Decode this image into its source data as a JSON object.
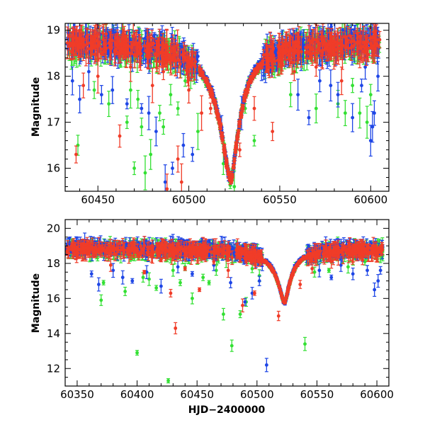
{
  "chart_data": [
    {
      "type": "scatter",
      "title": "",
      "xlabel": "",
      "ylabel": "Magnitude",
      "xlim": [
        60432,
        60610
      ],
      "ylim": [
        19.15,
        15.5
      ],
      "y_inverted": true,
      "grid": false,
      "x_ticks": [
        60450,
        60500,
        60550,
        60600
      ],
      "x_tick_labels": [
        "60450",
        "60500",
        "60550",
        "60600"
      ],
      "y_ticks": [
        16,
        17,
        18,
        19
      ],
      "y_tick_labels": [
        "16",
        "17",
        "18",
        "19"
      ],
      "peak": {
        "x": 60523,
        "y": 15.72
      },
      "series": [
        {
          "color": "#33e033",
          "baseline": 18.75,
          "outliers": [
            [
              60439,
              16.5
            ],
            [
              60448,
              17.7
            ],
            [
              60456,
              17.4
            ],
            [
              60466,
              17.0
            ],
            [
              60468,
              17.7
            ],
            [
              60470,
              16.0
            ],
            [
              60472,
              17.5
            ],
            [
              60474,
              16.9
            ],
            [
              60476,
              15.9
            ],
            [
              60479,
              16.3
            ],
            [
              60484,
              17.2
            ],
            [
              60486,
              16.9
            ],
            [
              60490,
              17.6
            ],
            [
              60494,
              17.3
            ],
            [
              60498,
              17.9
            ],
            [
              60505,
              16.8
            ],
            [
              60519,
              16.1
            ],
            [
              60525,
              15.6
            ],
            [
              60531,
              17.3
            ],
            [
              60536,
              16.6
            ],
            [
              60556,
              17.6
            ],
            [
              60570,
              17.3
            ],
            [
              60582,
              17.4
            ],
            [
              60586,
              17.2
            ],
            [
              60590,
              17.8
            ],
            [
              60594,
              17.2
            ],
            [
              60598,
              17.0
            ],
            [
              60600,
              17.6
            ]
          ]
        },
        {
          "color": "#1e46e6",
          "baseline": 18.8,
          "outliers": [
            [
              60436,
              17.9
            ],
            [
              60440,
              17.5
            ],
            [
              60445,
              18.1
            ],
            [
              60452,
              17.6
            ],
            [
              60458,
              17.7
            ],
            [
              60466,
              17.4
            ],
            [
              60474,
              17.3
            ],
            [
              60478,
              17.2
            ],
            [
              60482,
              16.8
            ],
            [
              60487,
              15.7
            ],
            [
              60491,
              16.0
            ],
            [
              60497,
              16.5
            ],
            [
              60502,
              16.3
            ],
            [
              60518,
              16.9
            ],
            [
              60529,
              17.2
            ],
            [
              60540,
              18.2
            ],
            [
              60560,
              17.6
            ],
            [
              60566,
              17.1
            ],
            [
              60572,
              17.9
            ],
            [
              60578,
              17.8
            ],
            [
              60582,
              17.6
            ],
            [
              60590,
              17.1
            ],
            [
              60595,
              17.8
            ],
            [
              60597,
              18.2
            ],
            [
              60600,
              16.6
            ],
            [
              60601,
              16.9
            ],
            [
              60602,
              17.2
            ],
            [
              60604,
              18.0
            ]
          ]
        },
        {
          "color": "#f03c28",
          "baseline": 18.75,
          "outliers": [
            [
              60438,
              16.3
            ],
            [
              60442,
              17.8
            ],
            [
              60450,
              18.0
            ],
            [
              60462,
              16.7
            ],
            [
              60468,
              18.2
            ],
            [
              60480,
              17.8
            ],
            [
              60486,
              18.1
            ],
            [
              60488,
              15.55
            ],
            [
              60494,
              16.2
            ],
            [
              60496,
              15.7
            ],
            [
              60500,
              17.7
            ],
            [
              60507,
              17.2
            ],
            [
              60512,
              17.3
            ],
            [
              60528,
              16.4
            ],
            [
              60536,
              17.3
            ],
            [
              60546,
              16.8
            ],
            [
              60558,
              18.1
            ],
            [
              60570,
              18.2
            ],
            [
              60584,
              17.9
            ],
            [
              60594,
              18.4
            ]
          ]
        }
      ]
    },
    {
      "type": "scatter",
      "title": "",
      "xlabel": "HJD−2400000",
      "ylabel": "Magnitude",
      "xlim": [
        60340,
        60610
      ],
      "ylim": [
        20.5,
        11.0
      ],
      "y_inverted": true,
      "grid": false,
      "x_ticks": [
        60350,
        60400,
        60450,
        60500,
        60550,
        60600
      ],
      "x_tick_labels": [
        "60350",
        "60400",
        "60450",
        "60500",
        "60550",
        "60600"
      ],
      "y_ticks": [
        12,
        14,
        16,
        18,
        20
      ],
      "y_tick_labels": [
        "12",
        "14",
        "16",
        "18",
        "20"
      ],
      "peak": {
        "x": 60523,
        "y": 15.75
      },
      "series": [
        {
          "color": "#33e033",
          "baseline": 18.8,
          "outliers": [
            [
              60370,
              15.9
            ],
            [
              60372,
              16.9
            ],
            [
              60390,
              16.4
            ],
            [
              60400,
              12.9
            ],
            [
              60405,
              17.2
            ],
            [
              60410,
              17.1
            ],
            [
              60416,
              16.6
            ],
            [
              60426,
              11.3
            ],
            [
              60430,
              17.6
            ],
            [
              60436,
              16.9
            ],
            [
              60440,
              17.8
            ],
            [
              60446,
              16.0
            ],
            [
              60455,
              17.2
            ],
            [
              60460,
              16.9
            ],
            [
              60466,
              17.6
            ],
            [
              60472,
              15.1
            ],
            [
              60479,
              13.3
            ],
            [
              60486,
              15.1
            ],
            [
              60491,
              15.8
            ],
            [
              60496,
              17.7
            ],
            [
              60502,
              17.3
            ],
            [
              60532,
              17.9
            ],
            [
              60540,
              13.4
            ],
            [
              60548,
              17.5
            ],
            [
              60560,
              17.6
            ],
            [
              60576,
              17.8
            ],
            [
              60590,
              18.1
            ]
          ]
        },
        {
          "color": "#1e46e6",
          "baseline": 18.9,
          "outliers": [
            [
              60362,
              17.4
            ],
            [
              60368,
              16.8
            ],
            [
              60380,
              17.6
            ],
            [
              60388,
              17.2
            ],
            [
              60396,
              17.0
            ],
            [
              60408,
              17.5
            ],
            [
              60420,
              16.7
            ],
            [
              60434,
              17.8
            ],
            [
              60446,
              17.4
            ],
            [
              60464,
              17.9
            ],
            [
              60478,
              16.9
            ],
            [
              60490,
              15.8
            ],
            [
              60496,
              16.3
            ],
            [
              60502,
              17.0
            ],
            [
              60508,
              12.2
            ],
            [
              60552,
              17.6
            ],
            [
              60562,
              17.2
            ],
            [
              60570,
              17.9
            ],
            [
              60580,
              17.4
            ],
            [
              60592,
              17.6
            ],
            [
              60598,
              16.5
            ],
            [
              60601,
              17.0
            ],
            [
              60603,
              17.6
            ]
          ]
        },
        {
          "color": "#f03c28",
          "baseline": 18.8,
          "outliers": [
            [
              60378,
              17.9
            ],
            [
              60406,
              17.5
            ],
            [
              60420,
              18.2
            ],
            [
              60428,
              16.3
            ],
            [
              60432,
              14.3
            ],
            [
              60440,
              17.7
            ],
            [
              60452,
              16.5
            ],
            [
              60464,
              18.1
            ],
            [
              60476,
              17.6
            ],
            [
              60488,
              15.6
            ],
            [
              60498,
              16.3
            ],
            [
              60518,
              15.0
            ],
            [
              60536,
              16.8
            ],
            [
              60546,
              17.7
            ],
            [
              60562,
              18.1
            ],
            [
              60588,
              18.2
            ]
          ]
        }
      ]
    }
  ]
}
